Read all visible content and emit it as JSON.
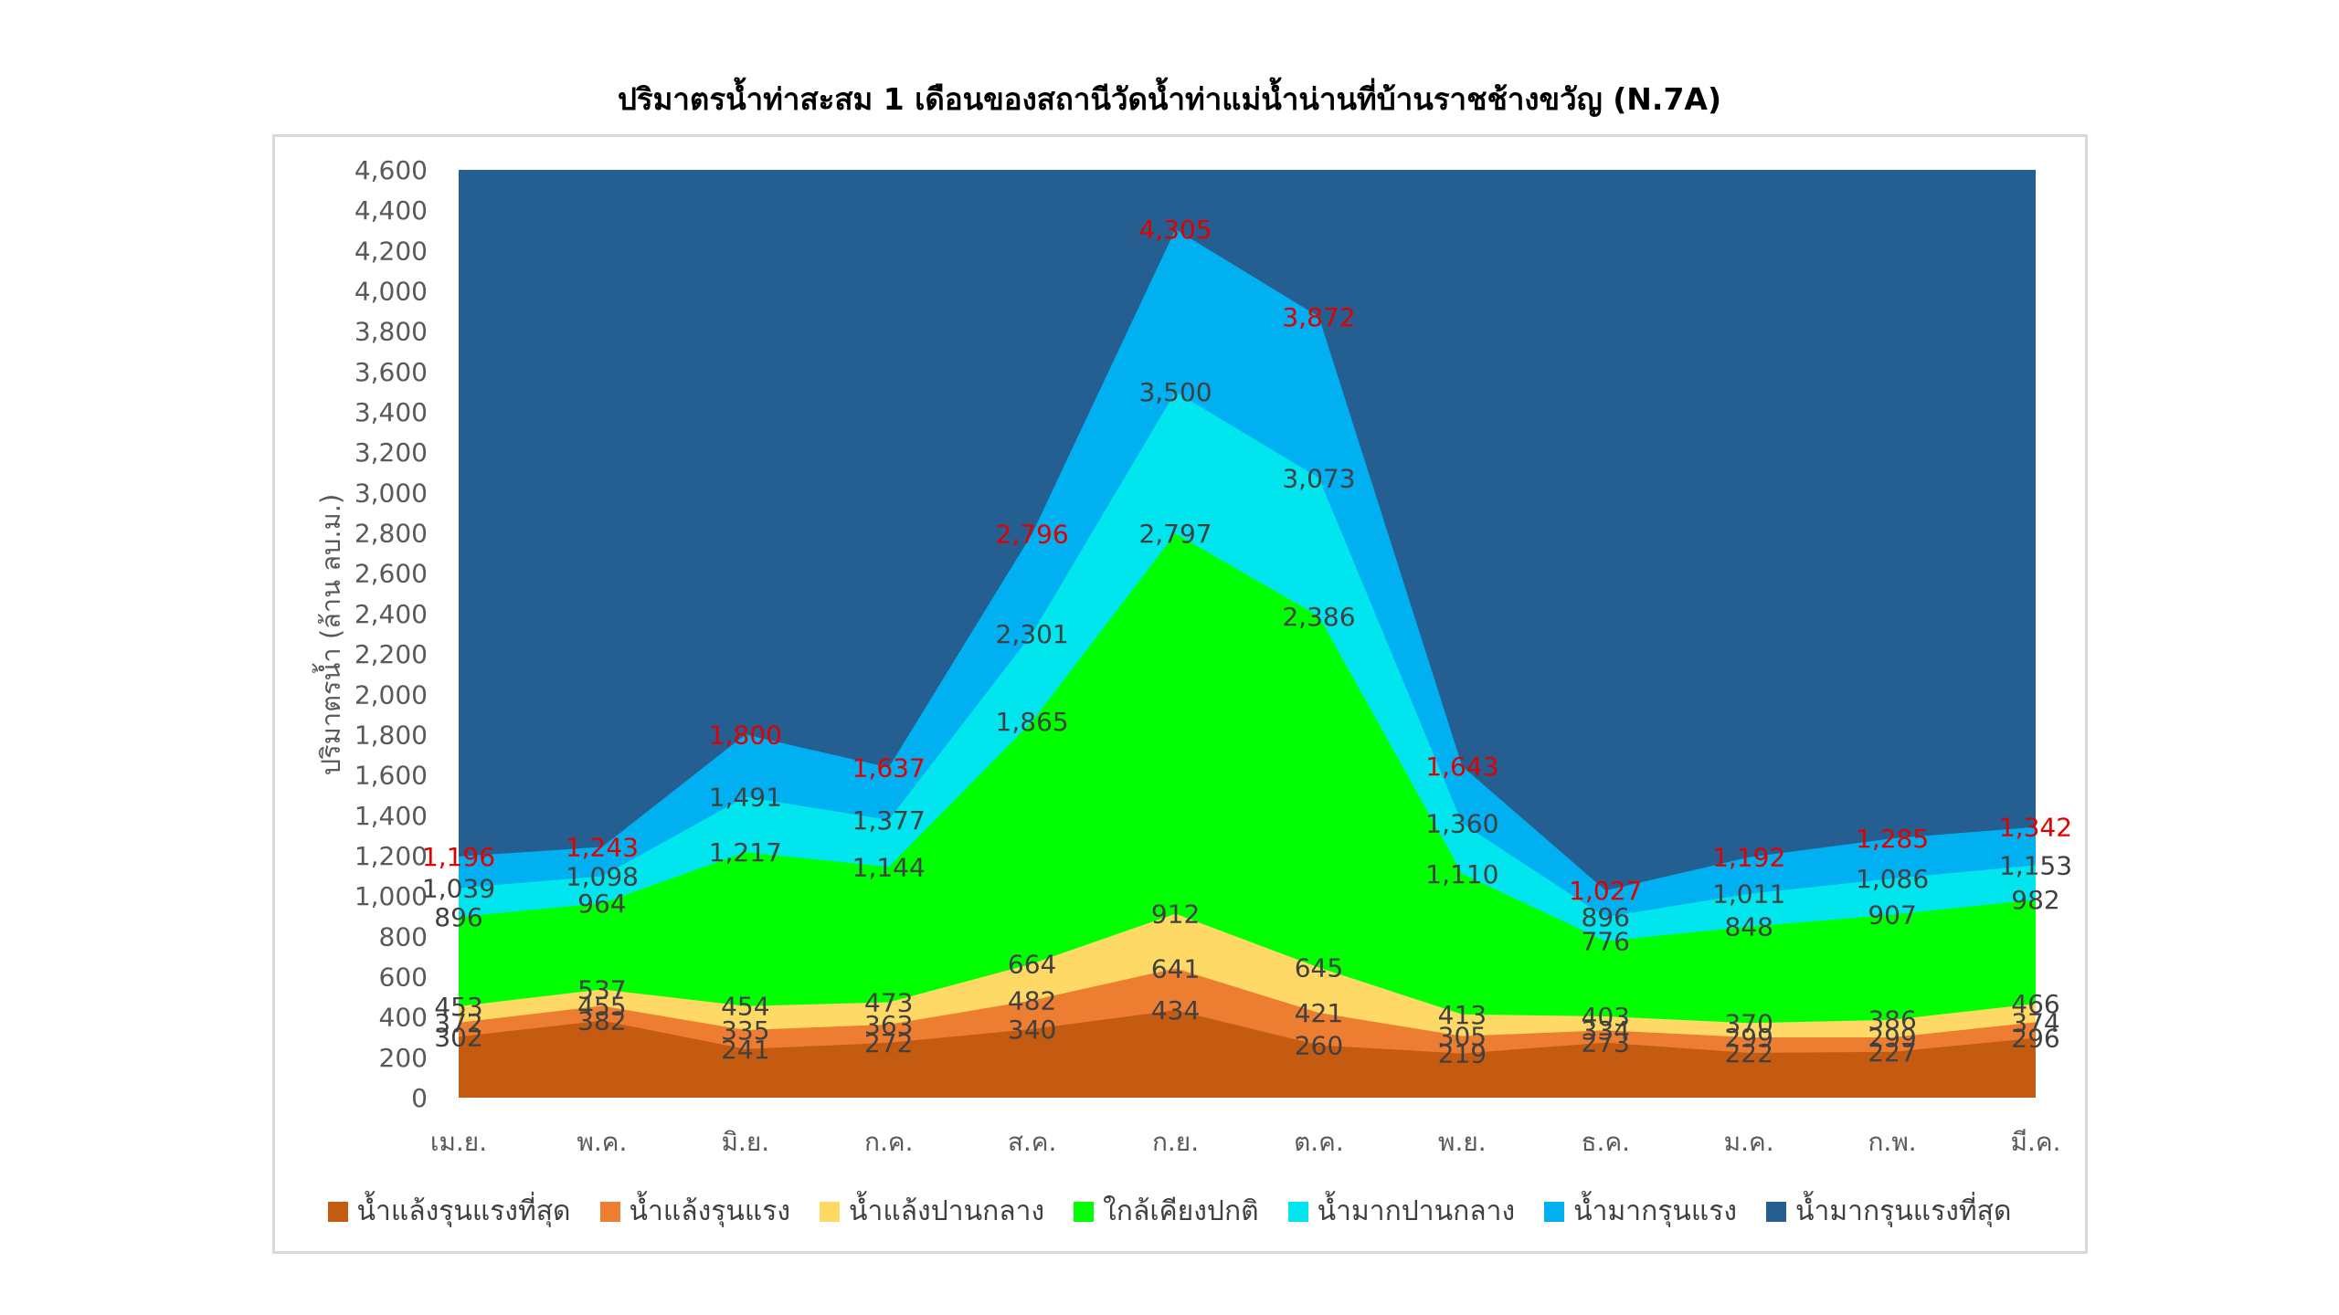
{
  "chart_data": {
    "type": "area",
    "title": "ปริมาตรน้ำท่าสะสม 1 เดือนของสถานีวัดน้ำท่าแม่น้ำน่านที่บ้านราชช้างขวัญ (N.7A)",
    "ylabel": "ปริมาตรน้ำ (ล้าน ลบ.ม.)",
    "xlabel": "",
    "ylim": [
      0,
      4600
    ],
    "ytick_step": 200,
    "categories": [
      "เม.ย.",
      "พ.ค.",
      "มิ.ย.",
      "ก.ค.",
      "ส.ค.",
      "ก.ย.",
      "ต.ค.",
      "พ.ย.",
      "ธ.ค.",
      "ม.ค.",
      "ก.พ.",
      "มี.ค."
    ],
    "series": [
      {
        "name": "น้ำแล้งรุนแรงที่สุด",
        "color": "#c55a11",
        "values": [
          302,
          382,
          241,
          272,
          340,
          434,
          260,
          219,
          273,
          222,
          227,
          296
        ],
        "labels": [
          "302",
          "382",
          "241",
          "272",
          "340",
          "434",
          "260",
          "219",
          "273",
          "222",
          "227",
          "296"
        ],
        "label_color": "#404040"
      },
      {
        "name": "น้ำแล้งรุนแรง",
        "color": "#ed7d31",
        "values": [
          372,
          455,
          335,
          363,
          482,
          641,
          421,
          305,
          334,
          299,
          299,
          374
        ],
        "labels": [
          "372",
          "455",
          "335",
          "363",
          "482",
          "641",
          "421",
          "305",
          "334",
          "299",
          "299",
          "374"
        ],
        "label_color": "#404040"
      },
      {
        "name": "น้ำแล้งปานกลาง",
        "color": "#ffd966",
        "values": [
          453,
          537,
          454,
          473,
          664,
          912,
          645,
          413,
          403,
          370,
          386,
          466
        ],
        "labels": [
          "453",
          "537",
          "454",
          "473",
          "664",
          "912",
          "645",
          "413",
          "403",
          "370",
          "386",
          "466"
        ],
        "label_color": "#404040"
      },
      {
        "name": "ใกล้เคียงปกติ",
        "color": "#00ff00",
        "values": [
          896,
          964,
          1217,
          1144,
          1865,
          2797,
          2386,
          1110,
          776,
          848,
          907,
          982
        ],
        "labels": [
          "896",
          "964",
          "1,217",
          "1,144",
          "1,865",
          "2,797",
          "2,386",
          "1,110",
          "776",
          "848",
          "907",
          "982"
        ],
        "label_color": "#404040"
      },
      {
        "name": "น้ำมากปานกลาง",
        "color": "#00e5ee",
        "values": [
          1039,
          1098,
          1491,
          1377,
          2301,
          3500,
          3073,
          1360,
          896,
          1011,
          1086,
          1153
        ],
        "labels": [
          "1,039",
          "1,098",
          "1,491",
          "1,377",
          "2,301",
          "3,500",
          "3,073",
          "1,360",
          "896",
          "1,011",
          "1,086",
          "1,153"
        ],
        "label_color": "#404040"
      },
      {
        "name": "น้ำมากรุนแรง",
        "color": "#00b0f0",
        "values": [
          1196,
          1243,
          1800,
          1637,
          2796,
          4305,
          3872,
          1643,
          1027,
          1192,
          1285,
          1342
        ],
        "labels": [
          "1,196",
          "1,243",
          "1,800",
          "1,637",
          "2,796",
          "4,305",
          "3,872",
          "1,643",
          "1,027",
          "1,192",
          "1,285",
          "1,342"
        ],
        "label_color": "#e00000"
      },
      {
        "name": "น้ำมากรุนแรงที่สุด",
        "color": "#255e91",
        "values": [
          4600,
          4600,
          4600,
          4600,
          4600,
          4600,
          4600,
          4600,
          4600,
          4600,
          4600,
          4600
        ],
        "labels": [],
        "label_color": "#404040"
      }
    ],
    "grid": false,
    "legend_position": "bottom"
  }
}
